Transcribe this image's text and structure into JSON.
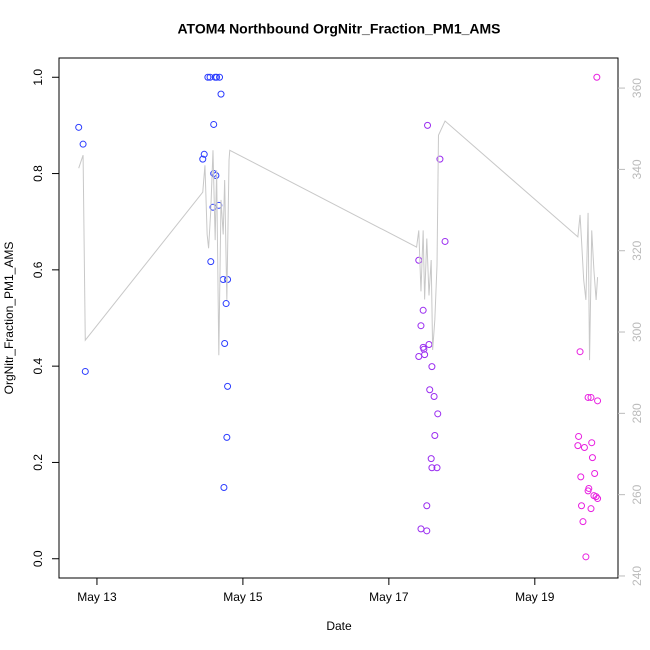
{
  "chart_data": {
    "type": "scatter",
    "title": "ATOM4 Northbound OrgNitr_Fraction_PM1_AMS",
    "x_label": "Date",
    "y_label": "OrgNitr_Fraction_PM1_AMS",
    "xlim": [
      12.48,
      20.14
    ],
    "ylim": [
      -0.04,
      1.04
    ],
    "y2lim": [
      239.5,
      367.4
    ],
    "xticks": [
      {
        "value": 13,
        "label": "May 13"
      },
      {
        "value": 15,
        "label": "May 15"
      },
      {
        "value": 17,
        "label": "May 17"
      },
      {
        "value": 19,
        "label": "May 19"
      }
    ],
    "yticks": [
      {
        "value": 0,
        "label": "0.0"
      },
      {
        "value": 0.2,
        "label": "0.2"
      },
      {
        "value": 0.4,
        "label": "0.4"
      },
      {
        "value": 0.6,
        "label": "0.6"
      },
      {
        "value": 0.8,
        "label": "0.8"
      },
      {
        "value": 1,
        "label": "1.0"
      }
    ],
    "y2ticks": [
      240,
      260,
      280,
      300,
      320,
      340,
      360
    ],
    "series": [
      {
        "type": "scatter",
        "color": "#2b3cff",
        "x": [
          12.75,
          12.81,
          12.84,
          14.45,
          14.47,
          14.52,
          14.55,
          14.62,
          14.64,
          14.68,
          14.6,
          14.56,
          14.59,
          14.6,
          14.63,
          14.67,
          14.7,
          14.73,
          14.79,
          14.77,
          14.75,
          14.79,
          14.78,
          14.74
        ],
        "values": [
          0.896,
          0.861,
          0.389,
          0.83,
          0.84,
          1.0,
          1.0,
          1.0,
          1.0,
          1.0,
          0.902,
          0.617,
          0.73,
          0.8,
          0.796,
          0.734,
          0.965,
          0.58,
          0.58,
          0.53,
          0.447,
          0.358,
          0.252,
          0.148
        ]
      },
      {
        "type": "scatter",
        "color": "#9a2cf0",
        "x": [
          17.53,
          17.7,
          17.77,
          17.41,
          17.47,
          17.44,
          17.41,
          17.47,
          17.48,
          17.49,
          17.55,
          17.59,
          17.56,
          17.62,
          17.67,
          17.63,
          17.58,
          17.59,
          17.66,
          17.52,
          17.44,
          17.52
        ],
        "values": [
          0.9,
          0.83,
          0.659,
          0.62,
          0.516,
          0.484,
          0.42,
          0.439,
          0.435,
          0.424,
          0.445,
          0.399,
          0.351,
          0.337,
          0.301,
          0.256,
          0.208,
          0.189,
          0.189,
          0.11,
          0.062,
          0.058
        ]
      },
      {
        "type": "scatter",
        "color": "#e81fe0",
        "x": [
          19.85,
          19.62,
          19.73,
          19.77,
          19.86,
          19.6,
          19.59,
          19.68,
          19.78,
          19.79,
          19.82,
          19.63,
          19.74,
          19.73,
          19.81,
          19.84,
          19.86,
          19.64,
          19.77,
          19.66,
          19.7
        ],
        "values": [
          1.0,
          0.43,
          0.335,
          0.335,
          0.328,
          0.254,
          0.235,
          0.231,
          0.241,
          0.21,
          0.177,
          0.17,
          0.146,
          0.141,
          0.131,
          0.129,
          0.125,
          0.11,
          0.104,
          0.077,
          0.004
        ]
      },
      {
        "type": "line",
        "axis": "y2",
        "color": "#c8c8c8",
        "x": [
          12.75,
          12.81,
          12.84,
          14.45,
          14.48,
          14.51,
          14.53,
          14.56,
          14.59,
          14.62,
          14.64,
          14.67,
          14.7,
          14.73,
          14.75,
          14.78,
          14.81,
          14.82,
          17.38,
          17.41,
          17.44,
          17.47,
          17.49,
          17.52,
          17.55,
          17.58,
          17.6,
          17.63,
          17.66,
          17.68,
          17.77,
          19.59,
          19.62,
          19.64,
          19.67,
          19.7,
          19.73,
          19.75,
          19.78,
          19.81,
          19.84,
          19.86
        ],
        "values": [
          340.3,
          343.5,
          298,
          334.4,
          341,
          324,
          320.6,
          330,
          344.7,
          322.6,
          339.8,
          294.3,
          332.5,
          324,
          337.4,
          307.9,
          342.3,
          344.7,
          320.9,
          325,
          310,
          325,
          308,
          323,
          309,
          317.7,
          295.6,
          303,
          316.5,
          348.4,
          351.9,
          323.4,
          328.8,
          322.6,
          312.8,
          307.9,
          329.3,
          293.1,
          325,
          315.2,
          307.9,
          313.5
        ]
      }
    ]
  }
}
